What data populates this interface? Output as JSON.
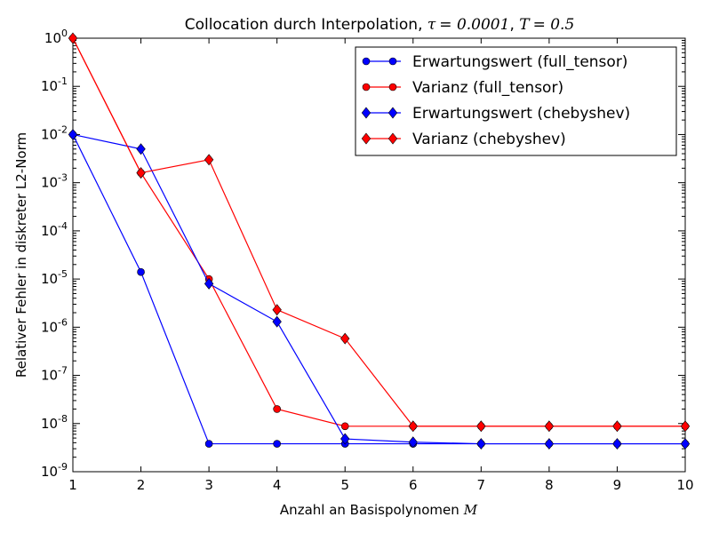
{
  "chart_data": {
    "type": "line",
    "title": "Collocation durch Interpolation, τ = 0.0001, T = 0.5",
    "title_parts": {
      "prefix": "Collocation durch Interpolation, ",
      "tau_symbol": "τ",
      "tau_value": "= 0.0001",
      "sep": ", ",
      "T_symbol": "T",
      "T_value": "= 0.5"
    },
    "xlabel": "Anzahl an Basispolynomen",
    "xlabel_symbol": "M",
    "ylabel": "Relativer Fehler in diskreter L2-Norm",
    "xlim": [
      1,
      10
    ],
    "ylim": [
      1e-09,
      1
    ],
    "yscale": "log",
    "grid": false,
    "legend_position": "top-right",
    "xticks": [
      "1",
      "2",
      "3",
      "4",
      "5",
      "6",
      "7",
      "8",
      "9",
      "10"
    ],
    "yticks": [
      {
        "base": "10",
        "exp": "-9"
      },
      {
        "base": "10",
        "exp": "-8"
      },
      {
        "base": "10",
        "exp": "-7"
      },
      {
        "base": "10",
        "exp": "-6"
      },
      {
        "base": "10",
        "exp": "-5"
      },
      {
        "base": "10",
        "exp": "-4"
      },
      {
        "base": "10",
        "exp": "-3"
      },
      {
        "base": "10",
        "exp": "-2"
      },
      {
        "base": "10",
        "exp": "-1"
      },
      {
        "base": "10",
        "exp": "0"
      }
    ],
    "x": [
      1,
      2,
      3,
      4,
      5,
      6,
      7,
      8,
      9,
      10
    ],
    "series": [
      {
        "name": "Erwartungswert (full_tensor)",
        "color": "#0000ff",
        "marker": "circle",
        "values": [
          0.01,
          1.4e-05,
          3.8e-09,
          3.8e-09,
          3.8e-09,
          3.8e-09,
          3.8e-09,
          3.8e-09,
          3.8e-09,
          3.8e-09
        ]
      },
      {
        "name": "Varianz (full_tensor)",
        "color": "#ff0000",
        "marker": "circle",
        "values": [
          1.0,
          0.0016,
          1e-05,
          2e-08,
          8.8e-09,
          8.8e-09,
          8.8e-09,
          8.8e-09,
          8.8e-09,
          8.8e-09
        ]
      },
      {
        "name": "Erwartungswert (chebyshev)",
        "color": "#0000ff",
        "marker": "diamond",
        "values": [
          0.01,
          0.005,
          8e-06,
          1.3e-06,
          4.8e-09,
          4.1e-09,
          3.8e-09,
          3.8e-09,
          3.8e-09,
          3.8e-09
        ]
      },
      {
        "name": "Varianz (chebyshev)",
        "color": "#ff0000",
        "marker": "diamond",
        "values": [
          1.0,
          0.0016,
          0.003,
          2.3e-06,
          5.8e-07,
          8.8e-09,
          8.8e-09,
          8.8e-09,
          8.8e-09,
          8.8e-09
        ]
      }
    ]
  }
}
